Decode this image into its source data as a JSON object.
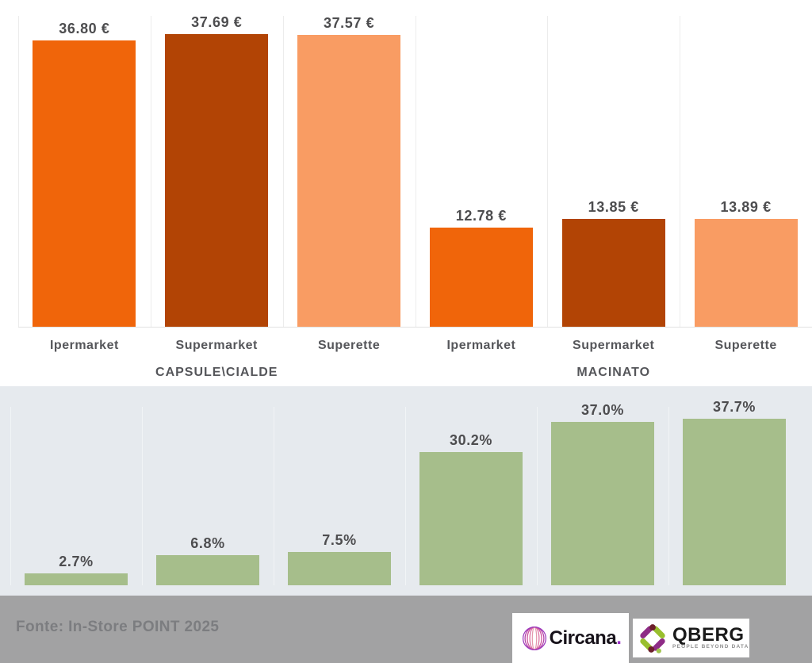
{
  "chart_data": [
    {
      "name": "average-price-by-channel",
      "type": "bar",
      "unit": "€",
      "categories": [
        "Ipermarket",
        "Supermarket",
        "Superette",
        "Ipermarket",
        "Supermarket",
        "Superette"
      ],
      "groups": [
        {
          "label": "CAPSULE\\CIALDE",
          "span": [
            0,
            2
          ]
        },
        {
          "label": "MACINATO",
          "span": [
            3,
            5
          ]
        }
      ],
      "values": [
        36.8,
        37.69,
        37.57,
        12.78,
        13.85,
        13.89
      ],
      "data_labels": [
        "36.80 €",
        "37.69 €",
        "37.57 €",
        "12.78 €",
        "13.85 €",
        "13.89 €"
      ],
      "bar_colors": [
        "#F0650A",
        "#B24405",
        "#F99C63",
        "#F0650A",
        "#B24405",
        "#F99C63"
      ],
      "ylim": [
        0,
        40
      ],
      "grid": "vertical column separators",
      "legend": "none",
      "background": "#FFFFFF"
    },
    {
      "name": "share-percent",
      "type": "bar",
      "unit": "%",
      "values": [
        2.7,
        6.8,
        7.5,
        30.2,
        37.0,
        37.7
      ],
      "data_labels": [
        "2.7%",
        "6.8%",
        "7.5%",
        "30.2%",
        "37.0%",
        "37.7%"
      ],
      "bar_color": "#A6BE8B",
      "ylim": [
        0,
        45
      ],
      "grid": "vertical column separators",
      "legend": "none",
      "background": "#E6EAEE"
    }
  ],
  "footer": {
    "source_text": "Fonte: In-Store POINT 2025",
    "background": "#A2A2A3",
    "logos": {
      "circana": {
        "text": "Circana",
        "dot": "."
      },
      "qberg": {
        "text": "QBERG",
        "tagline": "PEOPLE BEYOND DATA"
      }
    }
  },
  "colors": {
    "value_label": "#4D4D4F",
    "axis_label": "#55565A",
    "gridline": "#ECECEC",
    "bottom_panel_background": "#E6EAEE",
    "footer_background": "#A2A2A3",
    "footer_text": "#7C7D80"
  }
}
